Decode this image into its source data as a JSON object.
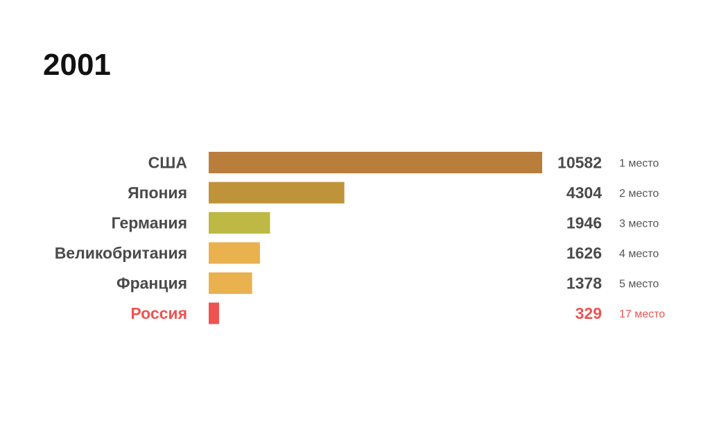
{
  "title": "2001",
  "chart_data": {
    "type": "bar",
    "orientation": "horizontal",
    "title": "2001",
    "xlabel": "",
    "ylabel": "",
    "categories": [
      "США",
      "Япония",
      "Германия",
      "Великобритания",
      "Франция",
      "Россия"
    ],
    "values": [
      10582,
      4304,
      1946,
      1626,
      1378,
      329
    ],
    "ranks": [
      "1 место",
      "2 место",
      "3 место",
      "4 место",
      "5 место",
      "17 место"
    ],
    "bar_colors": [
      "#BA7E3C",
      "#BF933A",
      "#BEB844",
      "#E9B24E",
      "#E9B24E",
      "#EE5352"
    ],
    "label_colors": [
      "#4A4A4A",
      "#4A4A4A",
      "#4A4A4A",
      "#4A4A4A",
      "#4A4A4A",
      "#EE5352"
    ],
    "rank_colors": [
      "#555555",
      "#555555",
      "#555555",
      "#555555",
      "#555555",
      "#EE5352"
    ],
    "xlim": [
      0,
      10582
    ],
    "grid": false,
    "legend": "none"
  }
}
